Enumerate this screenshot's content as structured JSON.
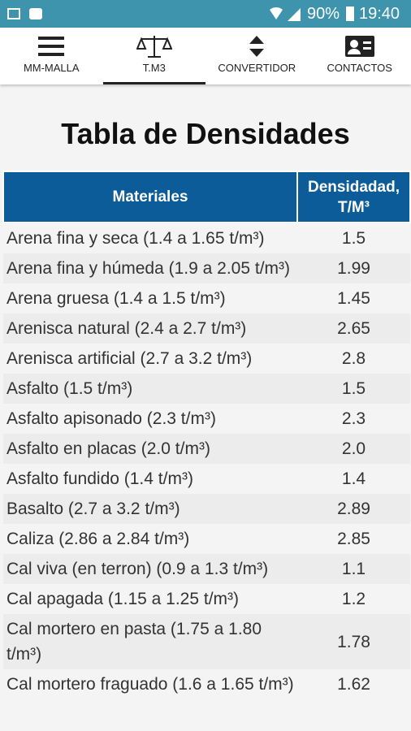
{
  "status_bar": {
    "battery": "90%",
    "time": "19:40"
  },
  "tabs": [
    "MM-MALLA",
    "T.M3",
    "CONVERTIDOR",
    "CONTACTOS"
  ],
  "page": {
    "title": "Tabla de Densidades"
  },
  "table": {
    "header": [
      "Materiales",
      "Densidadad, T/M³"
    ],
    "rows": [
      [
        "Arena fina y seca (1.4 a 1.65 t/m³)",
        "1.5"
      ],
      [
        "Arena fina y húmeda (1.9 a 2.05 t/m³)",
        "1.99"
      ],
      [
        "Arena gruesa (1.4 a 1.5 t/m³)",
        "1.45"
      ],
      [
        "Arenisca natural (2.4 a 2.7 t/m³)",
        "2.65"
      ],
      [
        "Arenisca artificial (2.7 a 3.2 t/m³)",
        "2.8"
      ],
      [
        "Asfalto (1.5 t/m³)",
        "1.5"
      ],
      [
        "Asfalto apisonado (2.3 t/m³)",
        "2.3"
      ],
      [
        "Asfalto en placas (2.0 t/m³)",
        "2.0"
      ],
      [
        "Asfalto fundido (1.4 t/m³)",
        "1.4"
      ],
      [
        "Basalto (2.7 a 3.2 t/m³)",
        "2.89"
      ],
      [
        "Caliza (2.86 a 2.84 t/m³)",
        "2.85"
      ],
      [
        "Cal viva (en terron) (0.9 a 1.3 t/m³)",
        "1.1"
      ],
      [
        "Cal apagada (1.15 a 1.25 t/m³)",
        "1.2"
      ],
      [
        "Cal mortero en pasta (1.75 a 1.80 t/m³)",
        "1.78"
      ],
      [
        "Cal mortero fraguado (1.6 a 1.65 t/m³)",
        "1.62"
      ]
    ]
  }
}
